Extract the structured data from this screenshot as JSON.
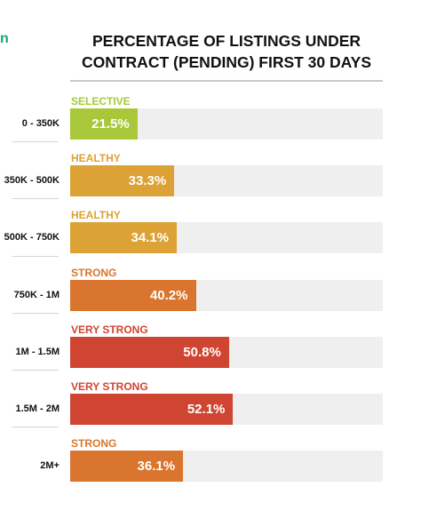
{
  "page": {
    "corner_text": "n"
  },
  "chart_data": {
    "type": "bar",
    "orientation": "horizontal",
    "title": "PERCENTAGE OF LISTINGS UNDER CONTRACT (PENDING) FIRST 30 DAYS",
    "title_lines": [
      "PERCENTAGE OF LISTINGS UNDER",
      "CONTRACT (PENDING) FIRST 30 DAYS"
    ],
    "xlabel": "",
    "ylabel": "",
    "xlim": [
      0,
      100
    ],
    "unit": "%",
    "grid": false,
    "legend": "none",
    "categories": [
      "0 - 350K",
      "350K - 500K",
      "500K - 750K",
      "750K - 1M",
      "1M - 1.5M",
      "1.5M - 2M",
      "2M+"
    ],
    "ratings": [
      "SELECTIVE",
      "HEALTHY",
      "HEALTHY",
      "STRONG",
      "VERY STRONG",
      "VERY STRONG",
      "STRONG"
    ],
    "values": [
      21.5,
      33.3,
      34.1,
      40.2,
      50.8,
      52.1,
      36.1
    ],
    "data_labels": [
      "21.5%",
      "33.3%",
      "34.1%",
      "40.2%",
      "50.8%",
      "52.1%",
      "36.1%"
    ],
    "rating_colors": {
      "SELECTIVE": "#a8c83a",
      "HEALTHY": "#dca235",
      "STRONG": "#d9752e",
      "VERY STRONG": "#d04432"
    },
    "track_color": "#efefef"
  }
}
